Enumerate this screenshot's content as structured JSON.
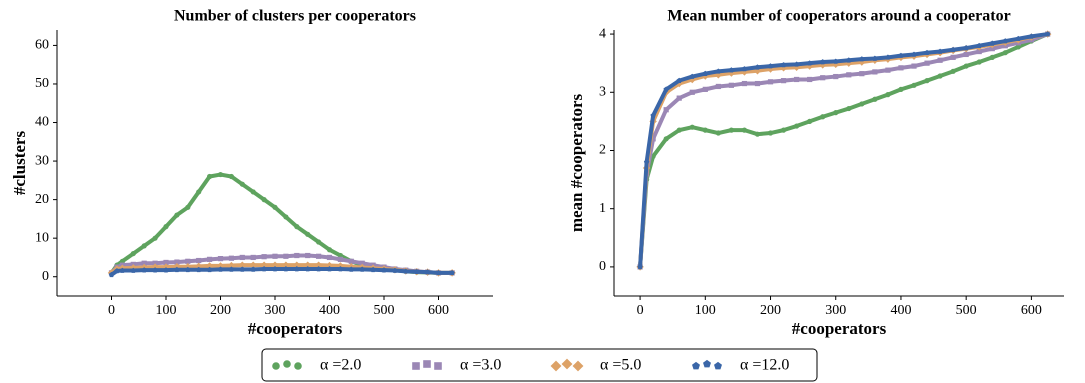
{
  "chart_data": [
    {
      "type": "scatter",
      "title": "Number of clusters per cooperators",
      "xlabel": "#cooperators",
      "ylabel": "#clusters",
      "xlim": [
        -100,
        700
      ],
      "xticks": [
        0,
        100,
        200,
        300,
        400,
        500,
        600
      ],
      "ylim": [
        -5,
        64
      ],
      "yticks": [
        0,
        10,
        20,
        30,
        40,
        50,
        60
      ],
      "x": [
        0,
        10,
        20,
        40,
        60,
        80,
        100,
        120,
        140,
        160,
        180,
        200,
        220,
        240,
        260,
        280,
        300,
        320,
        340,
        360,
        380,
        400,
        420,
        440,
        460,
        480,
        500,
        520,
        540,
        560,
        580,
        600,
        625
      ],
      "series": [
        {
          "name": "α =2.0",
          "color": "#5ea35e",
          "marker": "circle",
          "values": [
            1,
            3,
            4,
            6,
            8,
            10,
            13,
            16,
            18,
            22,
            26,
            26.5,
            26,
            24,
            22,
            20,
            18,
            15.5,
            13,
            11,
            9,
            7,
            5.5,
            4,
            3,
            2.5,
            2,
            1.7,
            1.4,
            1.2,
            1.1,
            1,
            1
          ]
        },
        {
          "name": "α =3.0",
          "color": "#9b87b5",
          "marker": "square",
          "values": [
            1,
            2.5,
            3,
            3.2,
            3.5,
            3.5,
            3.7,
            3.8,
            4,
            4.2,
            4.5,
            4.7,
            4.8,
            5,
            5,
            5.2,
            5.3,
            5.3,
            5.5,
            5.5,
            5.3,
            5,
            4.5,
            4,
            3.5,
            3,
            2.5,
            2,
            1.7,
            1.4,
            1.2,
            1,
            1
          ]
        },
        {
          "name": "α =5.0",
          "color": "#dda267",
          "marker": "diamond",
          "values": [
            1,
            2,
            2.2,
            2.3,
            2.4,
            2.5,
            2.5,
            2.6,
            2.6,
            2.7,
            2.8,
            2.8,
            2.9,
            3,
            3,
            3,
            3,
            3,
            3,
            3,
            3,
            2.9,
            2.8,
            2.6,
            2.4,
            2.2,
            2,
            1.8,
            1.5,
            1.3,
            1.2,
            1,
            1
          ]
        },
        {
          "name": "α =12.0",
          "color": "#3a66a8",
          "marker": "pentagon",
          "values": [
            0.5,
            1.5,
            1.6,
            1.6,
            1.7,
            1.7,
            1.7,
            1.8,
            1.8,
            1.8,
            1.8,
            1.9,
            1.9,
            1.9,
            1.9,
            2,
            2,
            2,
            2,
            2,
            2,
            2,
            2,
            1.9,
            1.9,
            1.8,
            1.7,
            1.6,
            1.4,
            1.3,
            1.2,
            1,
            1
          ]
        }
      ]
    },
    {
      "type": "scatter",
      "title": "Mean number of cooperators around a cooperator",
      "xlabel": "#cooperators",
      "ylabel": "mean #cooperators",
      "xlim": [
        -40,
        650
      ],
      "xticks": [
        0,
        100,
        200,
        300,
        400,
        500,
        600
      ],
      "ylim": [
        -0.5,
        4.07
      ],
      "yticks": [
        0,
        1,
        2,
        3,
        4
      ],
      "x": [
        0,
        10,
        20,
        40,
        60,
        80,
        100,
        120,
        140,
        160,
        180,
        200,
        220,
        240,
        260,
        280,
        300,
        320,
        340,
        360,
        380,
        400,
        420,
        440,
        460,
        480,
        500,
        520,
        540,
        560,
        580,
        600,
        625
      ],
      "series": [
        {
          "color": "#5ea35e",
          "marker": "circle",
          "values": [
            0,
            1.5,
            1.9,
            2.2,
            2.35,
            2.4,
            2.35,
            2.3,
            2.35,
            2.35,
            2.28,
            2.3,
            2.35,
            2.42,
            2.5,
            2.58,
            2.65,
            2.72,
            2.8,
            2.88,
            2.96,
            3.05,
            3.12,
            3.2,
            3.28,
            3.36,
            3.45,
            3.52,
            3.6,
            3.68,
            3.78,
            3.88,
            4
          ]
        },
        {
          "color": "#9b87b5",
          "marker": "square",
          "values": [
            0,
            1.6,
            2.2,
            2.7,
            2.9,
            3.0,
            3.05,
            3.1,
            3.12,
            3.15,
            3.15,
            3.18,
            3.2,
            3.22,
            3.22,
            3.25,
            3.27,
            3.3,
            3.32,
            3.35,
            3.38,
            3.42,
            3.45,
            3.5,
            3.55,
            3.6,
            3.65,
            3.7,
            3.75,
            3.8,
            3.85,
            3.9,
            4
          ]
        },
        {
          "color": "#dda267",
          "marker": "diamond",
          "values": [
            0,
            1.7,
            2.5,
            3.0,
            3.15,
            3.22,
            3.28,
            3.3,
            3.33,
            3.35,
            3.37,
            3.4,
            3.42,
            3.43,
            3.45,
            3.47,
            3.48,
            3.5,
            3.52,
            3.55,
            3.57,
            3.6,
            3.62,
            3.65,
            3.68,
            3.72,
            3.75,
            3.78,
            3.82,
            3.86,
            3.9,
            3.95,
            4
          ]
        },
        {
          "color": "#3a66a8",
          "marker": "pentagon",
          "values": [
            0,
            1.8,
            2.6,
            3.05,
            3.2,
            3.27,
            3.32,
            3.36,
            3.38,
            3.4,
            3.43,
            3.45,
            3.47,
            3.48,
            3.5,
            3.52,
            3.53,
            3.55,
            3.57,
            3.58,
            3.6,
            3.63,
            3.65,
            3.68,
            3.7,
            3.73,
            3.76,
            3.8,
            3.84,
            3.88,
            3.92,
            3.96,
            4
          ]
        }
      ]
    }
  ]
}
